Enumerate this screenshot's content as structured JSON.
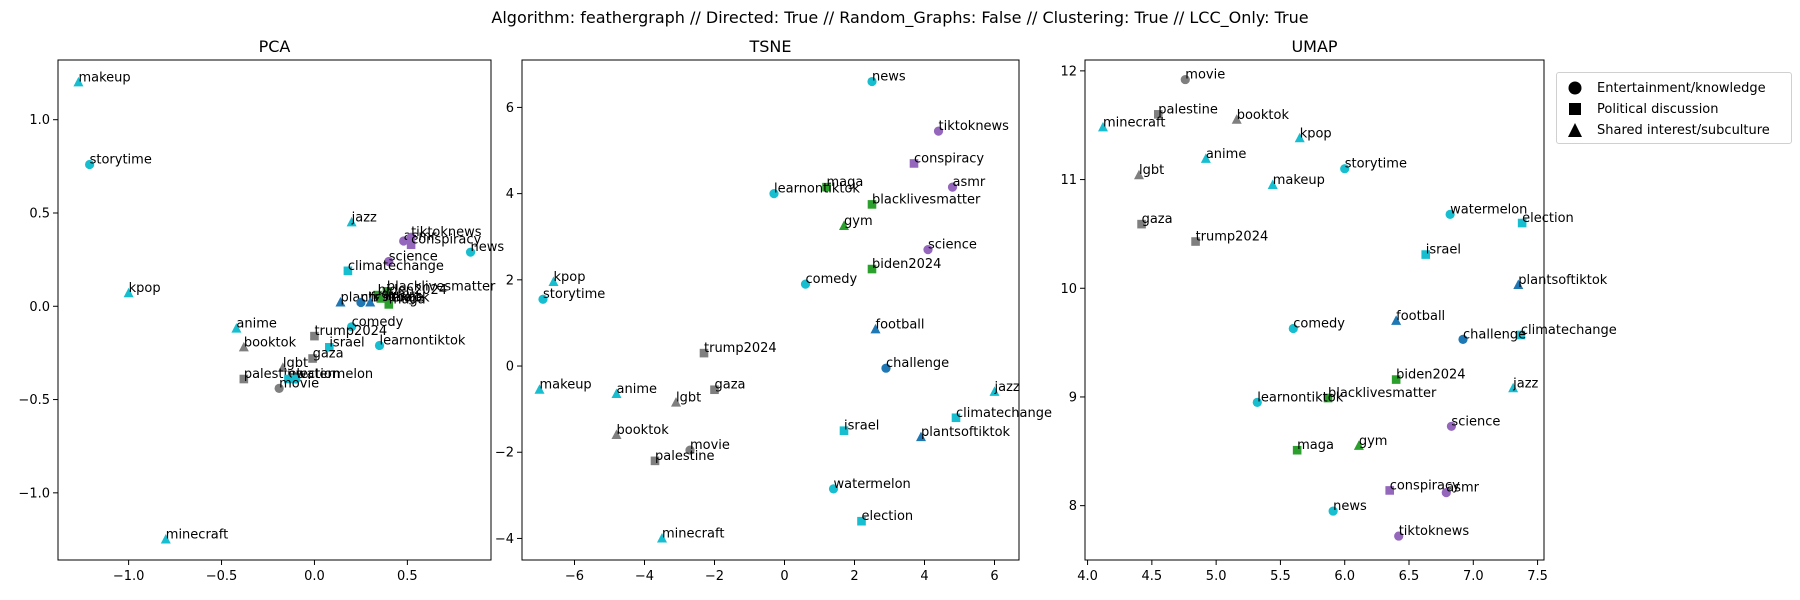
{
  "suptitle": "Algorithm: feathergraph // Directed: True // Random_Graphs: False // Clustering: True // LCC_Only: True",
  "legend": [
    {
      "label": "Entertainment/knowledge",
      "marker": "circle"
    },
    {
      "label": "Political discussion",
      "marker": "square"
    },
    {
      "label": "Shared interest/subculture",
      "marker": "triangle"
    }
  ],
  "colors": {
    "cyan": "#17becf",
    "purple": "#9467bd",
    "green": "#2ca02c",
    "gray": "#7f7f7f",
    "blue": "#1f77b4"
  },
  "chart_data": [
    {
      "type": "scatter",
      "title": "PCA",
      "xlim": [
        -1.38,
        0.95
      ],
      "ylim": [
        -1.36,
        1.32
      ],
      "xticks": [
        {
          "v": -1.0,
          "t": "−1.0"
        },
        {
          "v": -0.5,
          "t": "−0.5"
        },
        {
          "v": 0.0,
          "t": "0.0"
        },
        {
          "v": 0.5,
          "t": "0.5"
        }
      ],
      "yticks": [
        {
          "v": -1.0,
          "t": "−1.0"
        },
        {
          "v": -0.5,
          "t": "−0.5"
        },
        {
          "v": 0.0,
          "t": "0.0"
        },
        {
          "v": 0.5,
          "t": "0.5"
        },
        {
          "v": 1.0,
          "t": "1.0"
        }
      ],
      "points": [
        {
          "label": "makeup",
          "x": -1.27,
          "y": 1.2,
          "marker": "triangle",
          "color": "cyan"
        },
        {
          "label": "storytime",
          "x": -1.21,
          "y": 0.76,
          "marker": "circle",
          "color": "cyan"
        },
        {
          "label": "kpop",
          "x": -1.0,
          "y": 0.07,
          "marker": "triangle",
          "color": "cyan"
        },
        {
          "label": "minecraft",
          "x": -0.8,
          "y": -1.25,
          "marker": "triangle",
          "color": "cyan"
        },
        {
          "label": "jazz",
          "x": 0.2,
          "y": 0.45,
          "marker": "triangle",
          "color": "cyan"
        },
        {
          "label": "asmr",
          "x": 0.48,
          "y": 0.35,
          "marker": "circle",
          "color": "purple"
        },
        {
          "label": "tiktoknews",
          "x": 0.52,
          "y": 0.37,
          "marker": "circle",
          "color": "purple"
        },
        {
          "label": "conspiracy",
          "x": 0.52,
          "y": 0.33,
          "marker": "square",
          "color": "purple"
        },
        {
          "label": "news",
          "x": 0.84,
          "y": 0.29,
          "marker": "circle",
          "color": "cyan"
        },
        {
          "label": "science",
          "x": 0.4,
          "y": 0.24,
          "marker": "circle",
          "color": "purple"
        },
        {
          "label": "climatechange",
          "x": 0.18,
          "y": 0.19,
          "marker": "square",
          "color": "cyan"
        },
        {
          "label": "blacklivesmatter",
          "x": 0.39,
          "y": 0.08,
          "marker": "square",
          "color": "green"
        },
        {
          "label": "biden2024",
          "x": 0.34,
          "y": 0.06,
          "marker": "square",
          "color": "green"
        },
        {
          "label": "plantsoftiktok",
          "x": 0.14,
          "y": 0.02,
          "marker": "triangle",
          "color": "blue"
        },
        {
          "label": "challenge",
          "x": 0.25,
          "y": 0.02,
          "marker": "circle",
          "color": "blue"
        },
        {
          "label": "football",
          "x": 0.3,
          "y": 0.02,
          "marker": "triangle",
          "color": "blue"
        },
        {
          "label": "maga",
          "x": 0.4,
          "y": 0.01,
          "marker": "square",
          "color": "green"
        },
        {
          "label": "gym",
          "x": 0.36,
          "y": 0.04,
          "marker": "triangle",
          "color": "green"
        },
        {
          "label": "comedy",
          "x": 0.2,
          "y": -0.11,
          "marker": "circle",
          "color": "cyan"
        },
        {
          "label": "learnontiktok",
          "x": 0.35,
          "y": -0.21,
          "marker": "circle",
          "color": "cyan"
        },
        {
          "label": "anime",
          "x": -0.42,
          "y": -0.12,
          "marker": "triangle",
          "color": "cyan"
        },
        {
          "label": "trump2024",
          "x": 0.0,
          "y": -0.16,
          "marker": "square",
          "color": "gray"
        },
        {
          "label": "booktok",
          "x": -0.38,
          "y": -0.22,
          "marker": "triangle",
          "color": "gray"
        },
        {
          "label": "israel",
          "x": 0.08,
          "y": -0.22,
          "marker": "square",
          "color": "cyan"
        },
        {
          "label": "gaza",
          "x": -0.01,
          "y": -0.28,
          "marker": "square",
          "color": "gray"
        },
        {
          "label": "lgbt",
          "x": -0.17,
          "y": -0.33,
          "marker": "triangle",
          "color": "gray"
        },
        {
          "label": "palestine",
          "x": -0.38,
          "y": -0.39,
          "marker": "square",
          "color": "gray"
        },
        {
          "label": "election",
          "x": -0.14,
          "y": -0.39,
          "marker": "square",
          "color": "cyan"
        },
        {
          "label": "watermelon",
          "x": -0.1,
          "y": -0.39,
          "marker": "circle",
          "color": "cyan"
        },
        {
          "label": "movie",
          "x": -0.19,
          "y": -0.44,
          "marker": "circle",
          "color": "gray"
        }
      ]
    },
    {
      "type": "scatter",
      "title": "TSNE",
      "xlim": [
        -7.5,
        6.7
      ],
      "ylim": [
        -4.5,
        7.1
      ],
      "xticks": [
        {
          "v": -6,
          "t": "−6"
        },
        {
          "v": -4,
          "t": "−4"
        },
        {
          "v": -2,
          "t": "−2"
        },
        {
          "v": 0,
          "t": "0"
        },
        {
          "v": 2,
          "t": "2"
        },
        {
          "v": 4,
          "t": "4"
        },
        {
          "v": 6,
          "t": "6"
        }
      ],
      "yticks": [
        {
          "v": -4,
          "t": "−4"
        },
        {
          "v": -2,
          "t": "−2"
        },
        {
          "v": 0,
          "t": "0"
        },
        {
          "v": 2,
          "t": "2"
        },
        {
          "v": 4,
          "t": "4"
        },
        {
          "v": 6,
          "t": "6"
        }
      ],
      "points": [
        {
          "label": "news",
          "x": 2.5,
          "y": 6.6,
          "marker": "circle",
          "color": "cyan"
        },
        {
          "label": "tiktoknews",
          "x": 4.4,
          "y": 5.45,
          "marker": "circle",
          "color": "purple"
        },
        {
          "label": "conspiracy",
          "x": 3.7,
          "y": 4.7,
          "marker": "square",
          "color": "purple"
        },
        {
          "label": "asmr",
          "x": 4.8,
          "y": 4.15,
          "marker": "circle",
          "color": "purple"
        },
        {
          "label": "maga",
          "x": 1.2,
          "y": 4.15,
          "marker": "square",
          "color": "green"
        },
        {
          "label": "learnontiktok",
          "x": -0.3,
          "y": 4.0,
          "marker": "circle",
          "color": "cyan"
        },
        {
          "label": "blacklivesmatter",
          "x": 2.5,
          "y": 3.75,
          "marker": "square",
          "color": "green"
        },
        {
          "label": "gym",
          "x": 1.7,
          "y": 3.25,
          "marker": "triangle",
          "color": "green"
        },
        {
          "label": "science",
          "x": 4.1,
          "y": 2.7,
          "marker": "circle",
          "color": "purple"
        },
        {
          "label": "biden2024",
          "x": 2.5,
          "y": 2.25,
          "marker": "square",
          "color": "green"
        },
        {
          "label": "kpop",
          "x": -6.6,
          "y": 1.95,
          "marker": "triangle",
          "color": "cyan"
        },
        {
          "label": "comedy",
          "x": 0.6,
          "y": 1.9,
          "marker": "circle",
          "color": "cyan"
        },
        {
          "label": "storytime",
          "x": -6.9,
          "y": 1.55,
          "marker": "circle",
          "color": "cyan"
        },
        {
          "label": "football",
          "x": 2.6,
          "y": 0.85,
          "marker": "triangle",
          "color": "blue"
        },
        {
          "label": "trump2024",
          "x": -2.3,
          "y": 0.3,
          "marker": "square",
          "color": "gray"
        },
        {
          "label": "challenge",
          "x": 2.9,
          "y": -0.05,
          "marker": "circle",
          "color": "blue"
        },
        {
          "label": "makeup",
          "x": -7.0,
          "y": -0.55,
          "marker": "triangle",
          "color": "cyan"
        },
        {
          "label": "anime",
          "x": -4.8,
          "y": -0.65,
          "marker": "triangle",
          "color": "cyan"
        },
        {
          "label": "gaza",
          "x": -2.0,
          "y": -0.55,
          "marker": "square",
          "color": "gray"
        },
        {
          "label": "lgbt",
          "x": -3.1,
          "y": -0.85,
          "marker": "triangle",
          "color": "gray"
        },
        {
          "label": "jazz",
          "x": 6.0,
          "y": -0.6,
          "marker": "triangle",
          "color": "cyan"
        },
        {
          "label": "climatechange",
          "x": 4.9,
          "y": -1.2,
          "marker": "square",
          "color": "cyan"
        },
        {
          "label": "israel",
          "x": 1.7,
          "y": -1.5,
          "marker": "square",
          "color": "cyan"
        },
        {
          "label": "booktok",
          "x": -4.8,
          "y": -1.6,
          "marker": "triangle",
          "color": "gray"
        },
        {
          "label": "plantsoftiktok",
          "x": 3.9,
          "y": -1.65,
          "marker": "triangle",
          "color": "blue"
        },
        {
          "label": "movie",
          "x": -2.7,
          "y": -1.95,
          "marker": "circle",
          "color": "gray"
        },
        {
          "label": "palestine",
          "x": -3.7,
          "y": -2.2,
          "marker": "square",
          "color": "gray"
        },
        {
          "label": "watermelon",
          "x": 1.4,
          "y": -2.85,
          "marker": "circle",
          "color": "cyan"
        },
        {
          "label": "election",
          "x": 2.2,
          "y": -3.6,
          "marker": "square",
          "color": "cyan"
        },
        {
          "label": "minecraft",
          "x": -3.5,
          "y": -4.0,
          "marker": "triangle",
          "color": "cyan"
        }
      ]
    },
    {
      "type": "scatter",
      "title": "UMAP",
      "xlim": [
        3.98,
        7.55
      ],
      "ylim": [
        7.5,
        12.1
      ],
      "xticks": [
        {
          "v": 4.0,
          "t": "4.0"
        },
        {
          "v": 4.5,
          "t": "4.5"
        },
        {
          "v": 5.0,
          "t": "5.0"
        },
        {
          "v": 5.5,
          "t": "5.5"
        },
        {
          "v": 6.0,
          "t": "6.0"
        },
        {
          "v": 6.5,
          "t": "6.5"
        },
        {
          "v": 7.0,
          "t": "7.0"
        },
        {
          "v": 7.5,
          "t": "7.5"
        }
      ],
      "yticks": [
        {
          "v": 8,
          "t": "8"
        },
        {
          "v": 9,
          "t": "9"
        },
        {
          "v": 10,
          "t": "10"
        },
        {
          "v": 11,
          "t": "11"
        },
        {
          "v": 12,
          "t": "12"
        }
      ],
      "points": [
        {
          "label": "movie",
          "x": 4.76,
          "y": 11.92,
          "marker": "circle",
          "color": "gray"
        },
        {
          "label": "palestine",
          "x": 4.55,
          "y": 11.6,
          "marker": "square",
          "color": "gray"
        },
        {
          "label": "booktok",
          "x": 5.16,
          "y": 11.55,
          "marker": "triangle",
          "color": "gray"
        },
        {
          "label": "minecraft",
          "x": 4.12,
          "y": 11.48,
          "marker": "triangle",
          "color": "cyan"
        },
        {
          "label": "kpop",
          "x": 5.65,
          "y": 11.38,
          "marker": "triangle",
          "color": "cyan"
        },
        {
          "label": "anime",
          "x": 4.92,
          "y": 11.19,
          "marker": "triangle",
          "color": "cyan"
        },
        {
          "label": "storytime",
          "x": 6.0,
          "y": 11.1,
          "marker": "circle",
          "color": "cyan"
        },
        {
          "label": "lgbt",
          "x": 4.4,
          "y": 11.04,
          "marker": "triangle",
          "color": "gray"
        },
        {
          "label": "makeup",
          "x": 5.44,
          "y": 10.95,
          "marker": "triangle",
          "color": "cyan"
        },
        {
          "label": "watermelon",
          "x": 6.82,
          "y": 10.68,
          "marker": "circle",
          "color": "cyan"
        },
        {
          "label": "election",
          "x": 7.38,
          "y": 10.6,
          "marker": "square",
          "color": "cyan"
        },
        {
          "label": "gaza",
          "x": 4.42,
          "y": 10.59,
          "marker": "square",
          "color": "gray"
        },
        {
          "label": "trump2024",
          "x": 4.84,
          "y": 10.43,
          "marker": "square",
          "color": "gray"
        },
        {
          "label": "israel",
          "x": 6.63,
          "y": 10.31,
          "marker": "square",
          "color": "cyan"
        },
        {
          "label": "plantsoftiktok",
          "x": 7.35,
          "y": 10.03,
          "marker": "triangle",
          "color": "blue"
        },
        {
          "label": "football",
          "x": 6.4,
          "y": 9.7,
          "marker": "triangle",
          "color": "blue"
        },
        {
          "label": "comedy",
          "x": 5.6,
          "y": 9.63,
          "marker": "circle",
          "color": "cyan"
        },
        {
          "label": "climatechange",
          "x": 7.37,
          "y": 9.57,
          "marker": "square",
          "color": "cyan"
        },
        {
          "label": "challenge",
          "x": 6.92,
          "y": 9.53,
          "marker": "circle",
          "color": "blue"
        },
        {
          "label": "biden2024",
          "x": 6.4,
          "y": 9.16,
          "marker": "square",
          "color": "green"
        },
        {
          "label": "jazz",
          "x": 7.31,
          "y": 9.08,
          "marker": "triangle",
          "color": "cyan"
        },
        {
          "label": "blacklivesmatter",
          "x": 5.87,
          "y": 8.99,
          "marker": "square",
          "color": "green"
        },
        {
          "label": "learnontiktok",
          "x": 5.32,
          "y": 8.95,
          "marker": "circle",
          "color": "cyan"
        },
        {
          "label": "science",
          "x": 6.83,
          "y": 8.73,
          "marker": "circle",
          "color": "purple"
        },
        {
          "label": "gym",
          "x": 6.11,
          "y": 8.55,
          "marker": "triangle",
          "color": "green"
        },
        {
          "label": "maga",
          "x": 5.63,
          "y": 8.51,
          "marker": "square",
          "color": "green"
        },
        {
          "label": "conspiracy",
          "x": 6.35,
          "y": 8.14,
          "marker": "square",
          "color": "purple"
        },
        {
          "label": "asmr",
          "x": 6.79,
          "y": 8.12,
          "marker": "circle",
          "color": "purple"
        },
        {
          "label": "news",
          "x": 5.91,
          "y": 7.95,
          "marker": "circle",
          "color": "cyan"
        },
        {
          "label": "tiktoknews",
          "x": 6.42,
          "y": 7.72,
          "marker": "circle",
          "color": "purple"
        }
      ]
    }
  ]
}
